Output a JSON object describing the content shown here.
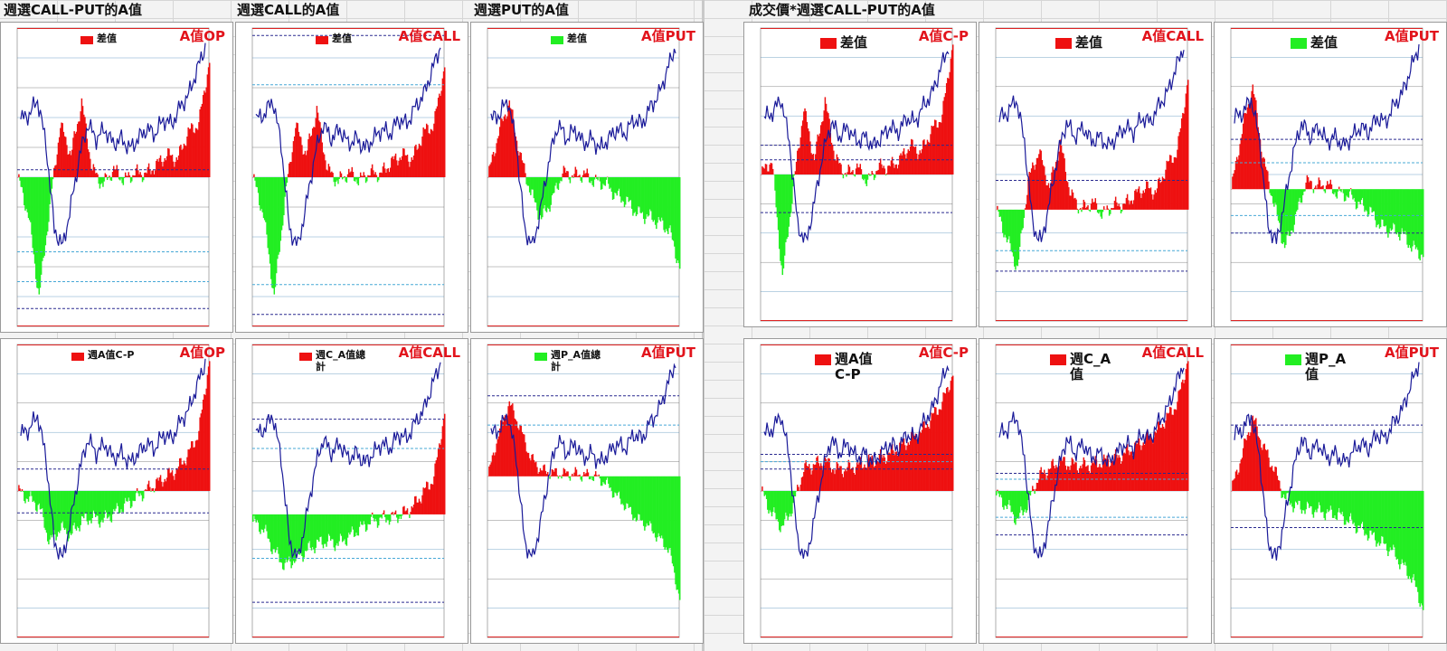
{
  "sections": [
    {
      "title": "週選CALL-PUT的A值"
    },
    {
      "title": "週選CALL的A值"
    },
    {
      "title": "週選PUT的A值"
    },
    {
      "title": "成交價*週選CALL-PUT的A值"
    }
  ],
  "colors": {
    "pos": "#ee1111",
    "neg": "#22ee22",
    "price": "#1a1a99",
    "dash_dark": "#2a2a90",
    "dash_light": "#47a8d6",
    "corner": "#e2141c"
  },
  "chart_data": [
    {
      "type": "area",
      "legend": "差值",
      "legend_color": "#ee1111",
      "corner": "A值OP",
      "values": [
        0,
        -2.5,
        -8,
        -2,
        3.5,
        1.5,
        5,
        0.5,
        -0.5,
        0.5,
        -0.2,
        0.3,
        0.2,
        0.8,
        1.5,
        1.2,
        3,
        3.6,
        7.8
      ],
      "levels": [
        [
          0.05,
          "dark"
        ],
        [
          -0.5,
          "light"
        ],
        [
          -0.7,
          "light"
        ],
        [
          -0.88,
          "dark"
        ]
      ],
      "ylim": [
        -10,
        10
      ],
      "zero_pos": 0.5
    },
    {
      "type": "area",
      "legend": "差值",
      "legend_color": "#ee1111",
      "corner": "A值CALL",
      "values": [
        0,
        -2.5,
        -8,
        -1.5,
        3.5,
        1.5,
        4.5,
        0.5,
        -0.3,
        0.3,
        -0.2,
        0.3,
        0.2,
        1,
        1.5,
        1.2,
        3,
        3.5,
        7.5
      ],
      "levels": [
        [
          0.95,
          "dark"
        ],
        [
          0.62,
          "light"
        ],
        [
          -0.72,
          "light"
        ],
        [
          -0.92,
          "dark"
        ]
      ],
      "ylim": [
        -10,
        10
      ],
      "zero_pos": 0.5
    },
    {
      "type": "area",
      "legend": "差值",
      "legend_color": "#22ee22",
      "corner": "A值PUT",
      "values": [
        0,
        3,
        5,
        1.5,
        -1,
        -2.8,
        -1.5,
        0.3,
        0.1,
        0.2,
        -0.3,
        -0.4,
        -1.2,
        -1.6,
        -2.4,
        -2.6,
        -3,
        -3.5,
        -6
      ],
      "levels": [],
      "ylim": [
        -10,
        10
      ],
      "zero_pos": 0.5
    },
    {
      "type": "area",
      "legend": "差值",
      "legend_color": "#ee1111",
      "corner": "A值C-P",
      "values": [
        0,
        1,
        -7,
        -1,
        4.5,
        1,
        5,
        1,
        0,
        0.5,
        -0.5,
        0.5,
        0.5,
        1,
        2,
        1.5,
        3,
        4,
        9
      ],
      "levels": [
        [
          0.2,
          "dark"
        ],
        [
          0.1,
          "dark"
        ],
        [
          -0.26,
          "dark"
        ]
      ],
      "ylim": [
        -10,
        10
      ],
      "zero_pos": 0.5
    },
    {
      "type": "area",
      "legend": "差值",
      "legend_color": "#ee1111",
      "corner": "A值CALL",
      "values": [
        0,
        -2,
        -4,
        2,
        4,
        1.5,
        4.5,
        1,
        0,
        0.5,
        -0.3,
        0.3,
        0.3,
        1,
        1.5,
        1.2,
        3,
        4,
        9
      ],
      "levels": [
        [
          0.2,
          "dark"
        ],
        [
          -0.28,
          "light"
        ],
        [
          -0.42,
          "dark"
        ]
      ],
      "ylim": [
        -10,
        10
      ],
      "zero_pos": 0.62
    },
    {
      "type": "area",
      "legend": "差值",
      "legend_color": "#22ee22",
      "corner": "A值PUT",
      "values": [
        0,
        4,
        7,
        2,
        -1,
        -4,
        -2,
        0.5,
        0.2,
        0.3,
        -0.3,
        -0.4,
        -1,
        -1.5,
        -2.5,
        -2.8,
        -3,
        -4,
        -4.5
      ],
      "levels": [
        [
          0.34,
          "dark"
        ],
        [
          0.18,
          "light"
        ],
        [
          -0.18,
          "light"
        ],
        [
          -0.3,
          "dark"
        ]
      ],
      "ylim": [
        -10,
        10
      ],
      "zero_pos": 0.55
    },
    {
      "type": "area",
      "legend": "週A值C-P",
      "legend_color": "#ee1111",
      "corner": "A值OP",
      "values": [
        0,
        -0.5,
        -1,
        -3.5,
        -2.5,
        -3,
        -2,
        -1.8,
        -2,
        -1.5,
        -1,
        -0.5,
        0,
        0.5,
        1,
        1.5,
        2.5,
        4,
        9
      ],
      "levels": [
        [
          0.15,
          "dark"
        ],
        [
          -0.15,
          "dark"
        ]
      ],
      "ylim": [
        -10,
        10
      ],
      "zero_pos": 0.5
    },
    {
      "type": "area",
      "legend": "週C_A值總計",
      "legend_color": "#ee1111",
      "corner": "A值CALL",
      "values": [
        -0.5,
        -1,
        -2.5,
        -3.5,
        -3,
        -2.5,
        -2,
        -1.8,
        -2,
        -1.5,
        -1,
        -0.5,
        -0.3,
        -0.2,
        0,
        0.5,
        1.5,
        2.5,
        7
      ],
      "levels": [
        [
          0.65,
          "dark"
        ],
        [
          0.45,
          "light"
        ],
        [
          -0.3,
          "light"
        ],
        [
          -0.6,
          "dark"
        ]
      ],
      "ylim": [
        -10,
        10
      ],
      "zero_pos": 0.58
    },
    {
      "type": "area",
      "legend": "週P_A值總計",
      "legend_color": "#22ee22",
      "corner": "A值PUT",
      "values": [
        0,
        3.5,
        6,
        4,
        1.5,
        0.5,
        0.3,
        0.2,
        0.2,
        0.1,
        0,
        -0.5,
        -1.5,
        -2.5,
        -3.5,
        -4,
        -5,
        -6,
        -10
      ],
      "levels": [
        [
          0.55,
          "dark"
        ],
        [
          0.35,
          "light"
        ]
      ],
      "ylim": [
        -12,
        12
      ],
      "zero_pos": 0.45
    },
    {
      "type": "area",
      "legend": "週A值C-P",
      "legend_color": "#ee1111",
      "corner": "A值C-P",
      "values": [
        0,
        -1.5,
        -2.5,
        -1,
        1.5,
        1.8,
        2,
        1.5,
        1.5,
        1.7,
        2,
        2.2,
        2.5,
        3,
        3.5,
        4,
        5,
        6,
        8
      ],
      "levels": [
        [
          0.25,
          "dark"
        ],
        [
          0.2,
          "light"
        ],
        [
          0.15,
          "dark"
        ]
      ],
      "ylim": [
        -10,
        10
      ],
      "zero_pos": 0.5
    },
    {
      "type": "area",
      "legend": "週C_A值",
      "legend_color": "#ee1111",
      "corner": "A值CALL",
      "values": [
        -0.3,
        -1,
        -2,
        -0.8,
        1,
        1.5,
        2,
        1.8,
        1.7,
        1.8,
        2,
        2.2,
        2.5,
        3,
        3.5,
        4,
        5,
        6,
        9
      ],
      "levels": [
        [
          0.12,
          "dark"
        ],
        [
          0.08,
          "light"
        ],
        [
          -0.18,
          "light"
        ],
        [
          -0.3,
          "dark"
        ]
      ],
      "ylim": [
        -10,
        10
      ],
      "zero_pos": 0.5
    },
    {
      "type": "area",
      "legend": "週P_A值",
      "legend_color": "#22ee22",
      "corner": "A值PUT",
      "values": [
        0,
        2.5,
        5,
        3,
        1.5,
        -0.5,
        -1,
        -1.2,
        -1.3,
        -1.5,
        -1.6,
        -2,
        -2.5,
        -3,
        -3.5,
        -4,
        -5,
        -6,
        -8
      ],
      "levels": [
        [
          0.45,
          "dark"
        ],
        [
          -0.25,
          "dark"
        ]
      ],
      "ylim": [
        -10,
        10
      ],
      "zero_pos": 0.5
    }
  ],
  "price_series": {
    "type": "line",
    "values": [
      0.7,
      0.72,
      0.78,
      0.6,
      0.25,
      0.18,
      0.35,
      0.55,
      0.68,
      0.62,
      0.66,
      0.6,
      0.62,
      0.58,
      0.62,
      0.66,
      0.64,
      0.7,
      0.68,
      0.75,
      0.8,
      0.9,
      1.0
    ]
  }
}
